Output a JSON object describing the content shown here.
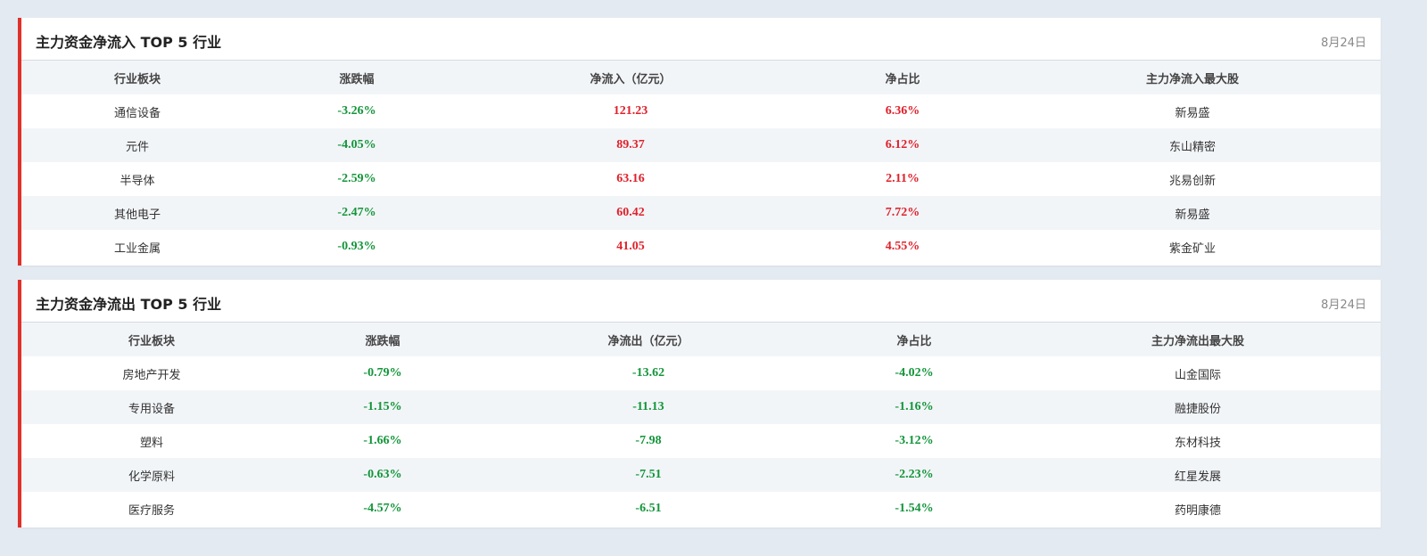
{
  "panels": [
    {
      "title": "主力资金净流入 TOP 5 行业",
      "date": "8月24日",
      "headers": [
        "行业板块",
        "涨跌幅",
        "净流入（亿元）",
        "净占比",
        "主力净流入最大股"
      ],
      "rows": [
        [
          "通信设备",
          "-3.26%",
          "121.23",
          "6.36%",
          "新易盛"
        ],
        [
          "元件",
          "-4.05%",
          "89.37",
          "6.12%",
          "东山精密"
        ],
        [
          "半导体",
          "-2.59%",
          "63.16",
          "2.11%",
          "兆易创新"
        ],
        [
          "其他电子",
          "-2.47%",
          "60.42",
          "7.72%",
          "新易盛"
        ],
        [
          "工业金属",
          "-0.93%",
          "41.05",
          "4.55%",
          "紫金矿业"
        ]
      ]
    },
    {
      "title": "主力资金净流出 TOP 5 行业",
      "date": "8月24日",
      "headers": [
        "行业板块",
        "涨跌幅",
        "净流出（亿元）",
        "净占比",
        "主力净流出最大股"
      ],
      "rows": [
        [
          "房地产开发",
          "-0.79%",
          "-13.62",
          "-4.02%",
          "山金国际"
        ],
        [
          "专用设备",
          "-1.15%",
          "-11.13",
          "-1.16%",
          "融捷股份"
        ],
        [
          "塑料",
          "-1.66%",
          "-7.98",
          "-3.12%",
          "东材科技"
        ],
        [
          "化学原料",
          "-0.63%",
          "-7.51",
          "-2.23%",
          "红星发展"
        ],
        [
          "医疗服务",
          "-4.57%",
          "-6.51",
          "-1.54%",
          "药明康德"
        ]
      ]
    }
  ]
}
